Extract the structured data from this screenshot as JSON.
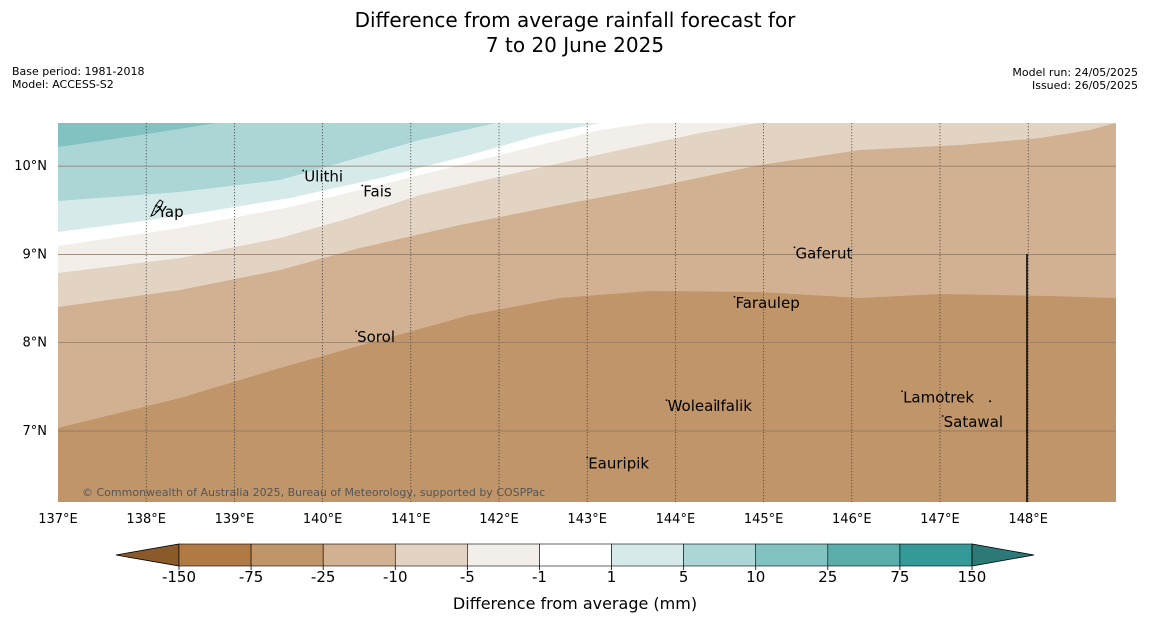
{
  "header": {
    "title_line1": "Difference from average rainfall forecast for",
    "title_line2": "7 to 20 June 2025",
    "base_period": "Base period: 1981-2018",
    "model": "Model: ACCESS-S2",
    "model_run": "Model run: 24/05/2025",
    "issued": "Issued: 26/05/2025"
  },
  "map": {
    "lon_range": [
      137,
      149
    ],
    "lat_range": [
      6.2,
      10.5
    ],
    "lon_ticks": [
      "137°E",
      "138°E",
      "139°E",
      "140°E",
      "141°E",
      "142°E",
      "143°E",
      "144°E",
      "145°E",
      "146°E",
      "147°E",
      "148°E"
    ],
    "lat_ticks": [
      "7°N",
      "8°N",
      "9°N",
      "10°N"
    ],
    "copyright": "© Commonwealth of Australia 2025, Bureau of Meteorology, supported by COSPPac",
    "places": [
      {
        "name": "Ulithi",
        "lon": 139.78,
        "lat": 9.95
      },
      {
        "name": "Fais",
        "lon": 140.45,
        "lat": 9.78
      },
      {
        "name": "Yap",
        "lon": 138.12,
        "lat": 9.55
      },
      {
        "name": "Gaferut",
        "lon": 145.35,
        "lat": 9.08
      },
      {
        "name": "Faraulep",
        "lon": 144.67,
        "lat": 8.52
      },
      {
        "name": "Sorol",
        "lon": 140.38,
        "lat": 8.13
      },
      {
        "name": "Woleai",
        "lon": 143.9,
        "lat": 7.35
      },
      {
        "name": "Ifalik",
        "lon": 144.45,
        "lat": 7.35
      },
      {
        "name": "Lamotrek",
        "lon": 146.57,
        "lat": 7.45
      },
      {
        "name": "Satawal",
        "lon": 147.03,
        "lat": 7.17
      },
      {
        "name": "Eauripik",
        "lon": 143.0,
        "lat": 6.7
      }
    ]
  },
  "colorbar": {
    "label": "Difference from average (mm)",
    "ticks": [
      "-150",
      "-75",
      "-25",
      "-10",
      "-5",
      "-1",
      "1",
      "5",
      "10",
      "25",
      "75",
      "150"
    ],
    "colors": [
      "#8b5a2b",
      "#b07a44",
      "#c0956a",
      "#d2b192",
      "#e3d3c3",
      "#f2efea",
      "#ffffff",
      "#d7eaea",
      "#acd6d6",
      "#82c2c1",
      "#5aadab",
      "#339a98",
      "#2b7a78"
    ]
  }
}
